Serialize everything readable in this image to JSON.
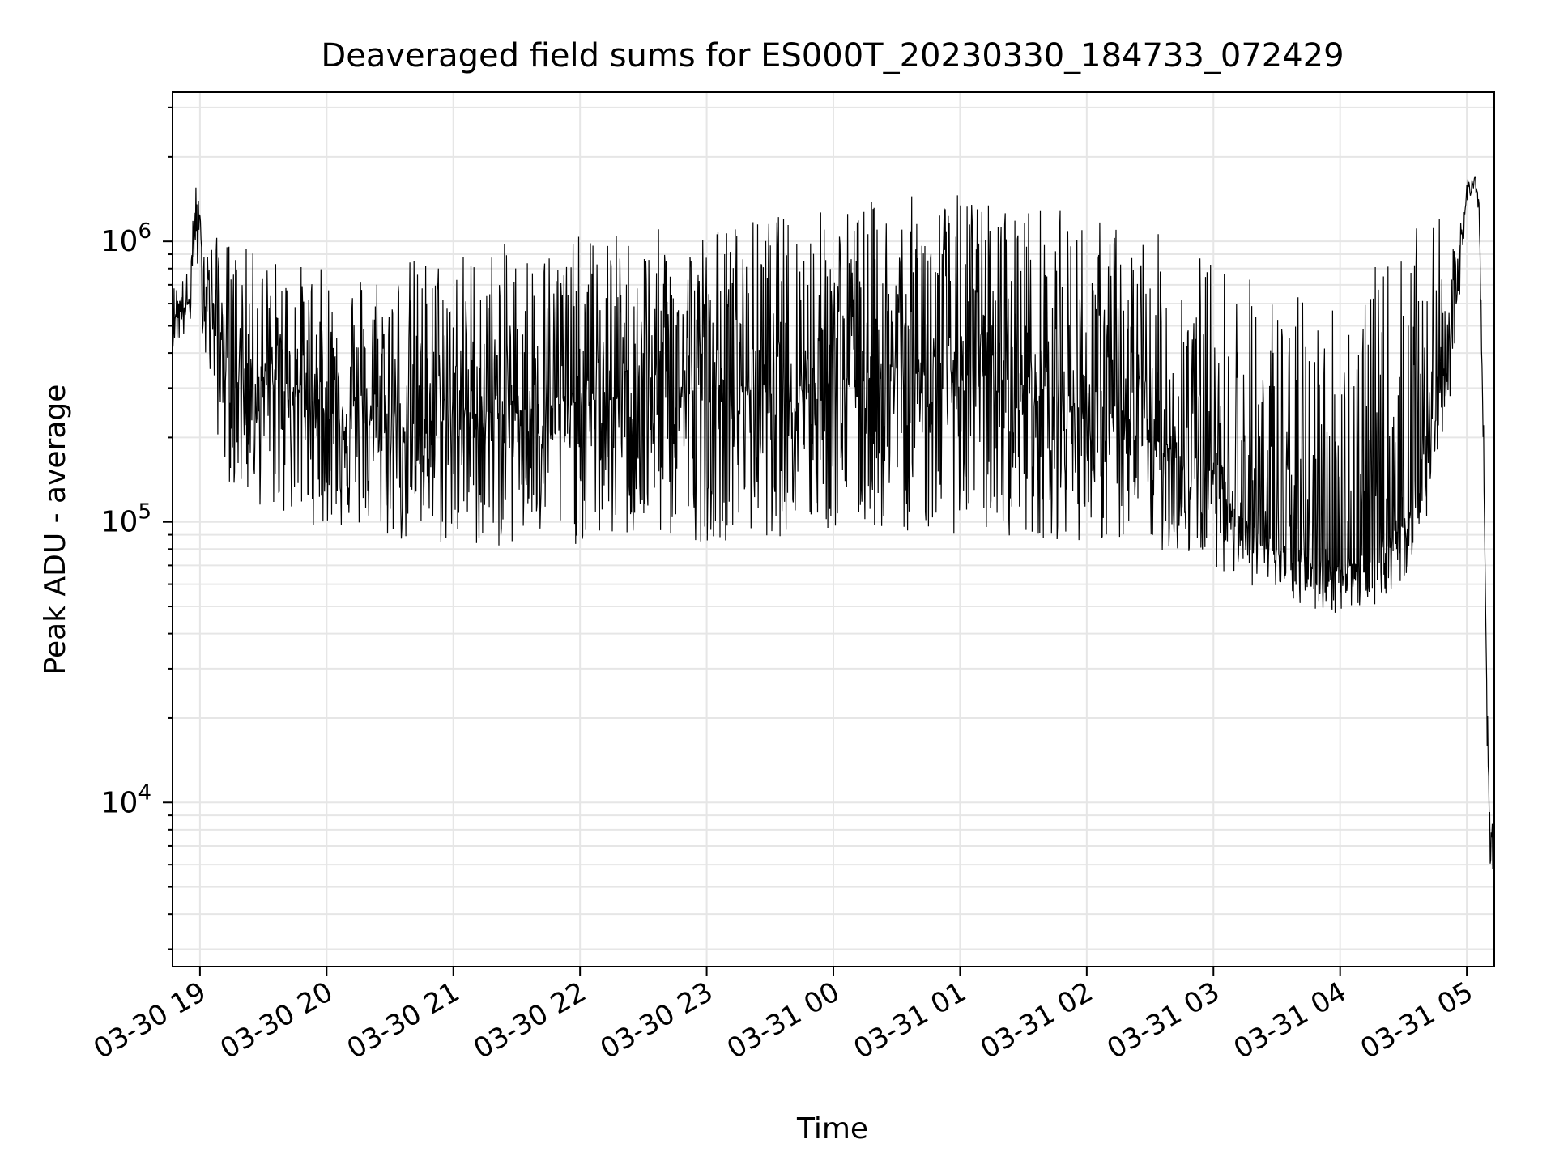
{
  "chart_data": {
    "type": "line",
    "title": "Deaveraged field sums for ES000T_20230330_184733_072429",
    "xlabel": "Time",
    "ylabel": "Peak ADU - average",
    "yscale": "log",
    "grid": true,
    "legend": "none",
    "xlim": [
      "2023-03-30 18:47",
      "2023-03-31 05:13"
    ],
    "ylim": [
      2600,
      3400000
    ],
    "x_ticks": [
      "03-30 19",
      "03-30 20",
      "03-30 21",
      "03-30 22",
      "03-30 23",
      "03-31 00",
      "03-31 01",
      "03-31 02",
      "03-31 03",
      "03-31 04",
      "03-31 05"
    ],
    "y_ticks": [
      10000,
      100000,
      1000000
    ],
    "y_tick_labels": [
      {
        "base": "10",
        "exp": "4"
      },
      {
        "base": "10",
        "exp": "5"
      },
      {
        "base": "10",
        "exp": "6"
      }
    ],
    "line_color": "#000000",
    "series": [
      {
        "x": [
          "2023-03-30 18:47",
          "2023-03-30 18:55",
          "2023-03-30 18:58",
          "2023-03-30 19:00",
          "2023-03-30 19:02",
          "2023-03-30 19:06",
          "2023-03-30 19:10",
          "2023-03-30 19:15",
          "2023-03-30 19:30",
          "2023-03-30 19:45",
          "2023-03-30 20:00",
          "2023-03-30 20:20",
          "2023-03-30 20:40",
          "2023-03-30 21:00",
          "2023-03-30 21:30",
          "2023-03-30 22:00",
          "2023-03-30 22:30",
          "2023-03-30 23:00",
          "2023-03-30 23:30",
          "2023-03-31 00:00",
          "2023-03-31 00:30",
          "2023-03-31 01:00",
          "2023-03-31 01:30",
          "2023-03-31 02:00",
          "2023-03-31 02:30",
          "2023-03-31 03:00",
          "2023-03-31 03:15",
          "2023-03-31 03:30",
          "2023-03-31 03:45",
          "2023-03-31 04:00",
          "2023-03-31 04:15",
          "2023-03-31 04:30",
          "2023-03-31 04:45",
          "2023-03-31 04:55",
          "2023-03-31 05:00",
          "2023-03-31 05:04",
          "2023-03-31 05:06",
          "2023-03-31 05:08",
          "2023-03-31 05:09",
          "2023-03-31 05:10",
          "2023-03-31 05:11",
          "2023-03-31 05:12",
          "2023-03-31 05:13"
        ],
        "y": [
          550000,
          600000,
          1300000,
          1000000,
          750000,
          600000,
          450000,
          350000,
          320000,
          300000,
          250000,
          230000,
          220000,
          240000,
          250000,
          270000,
          280000,
          300000,
          310000,
          330000,
          350000,
          340000,
          310000,
          250000,
          200000,
          150000,
          100000,
          80000,
          70000,
          70000,
          72000,
          100000,
          250000,
          600000,
          1500000,
          1700000,
          1200000,
          180000,
          40000,
          15000,
          6000,
          7000,
          9000
        ],
        "envelope_high": [
          700000,
          800000,
          1700000,
          1300000,
          1100000,
          1000000,
          1100000,
          1000000,
          900000,
          850000,
          800000,
          850000,
          900000,
          950000,
          1000000,
          1050000,
          1100000,
          1150000,
          1250000,
          1350000,
          1450000,
          1500000,
          1400000,
          1250000,
          1100000,
          900000,
          800000,
          700000,
          650000,
          700000,
          800000,
          1000000,
          1300000,
          900000,
          1800000,
          1700000,
          1400000,
          220000,
          50000,
          18000,
          9000,
          9500,
          10500
        ],
        "envelope_low": [
          420000,
          450000,
          900000,
          600000,
          400000,
          250000,
          170000,
          130000,
          110000,
          100000,
          95000,
          90000,
          80000,
          80000,
          80000,
          82000,
          84000,
          85000,
          88000,
          90000,
          92000,
          90000,
          88000,
          85000,
          80000,
          70000,
          60000,
          55000,
          48000,
          47000,
          50000,
          60000,
          120000,
          400000,
          1300000,
          1600000,
          1000000,
          150000,
          30000,
          10000,
          3300,
          5000,
          7500
        ]
      }
    ]
  }
}
